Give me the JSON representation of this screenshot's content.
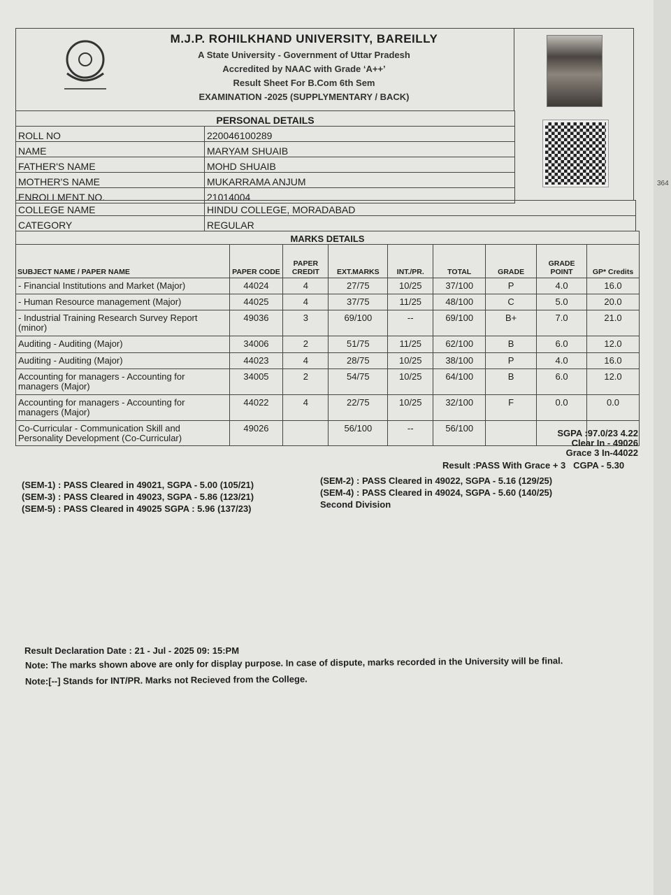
{
  "header": {
    "university": "M.J.P. ROHILKHAND UNIVERSITY, BAREILLY",
    "line1": "A State University - Government of Uttar Pradesh",
    "line2": "Accredited by NAAC with Grade ‘A++’",
    "line3": "Result Sheet For B.Com 6th Sem",
    "line4": "EXAMINATION -2025 (SUPPLYMENTARY / BACK)"
  },
  "personal": {
    "title": "PERSONAL DETAILS",
    "rows": [
      {
        "label": "ROLL NO",
        "value": "220046100289"
      },
      {
        "label": "NAME",
        "value": "MARYAM SHUAIB"
      },
      {
        "label": "FATHER'S NAME",
        "value": "MOHD SHUAIB"
      },
      {
        "label": "MOTHER'S NAME",
        "value": "MUKARRAMA ANJUM"
      },
      {
        "label": "ENROLLMENT NO.",
        "value": "21014004"
      },
      {
        "label": "COLLEGE NAME",
        "value": "HINDU COLLEGE, MORADABAD"
      },
      {
        "label": "CATEGORY",
        "value": "REGULAR"
      }
    ]
  },
  "marks": {
    "title": "MARKS DETAILS",
    "headers": [
      "SUBJECT NAME / PAPER NAME",
      "PAPER CODE",
      "PAPER CREDIT",
      "EXT.MARKS",
      "INT./PR.",
      "TOTAL",
      "GRADE",
      "GRADE POINT",
      "GP* Credits"
    ],
    "rows": [
      [
        "- Financial Institutions and Market (Major)",
        "44024",
        "4",
        "27/75",
        "10/25",
        "37/100",
        "P",
        "4.0",
        "16.0"
      ],
      [
        "- Human Resource management (Major)",
        "44025",
        "4",
        "37/75",
        "11/25",
        "48/100",
        "C",
        "5.0",
        "20.0"
      ],
      [
        "- Industrial Training Research Survey Report (minor)",
        "49036",
        "3",
        "69/100",
        "--",
        "69/100",
        "B+",
        "7.0",
        "21.0"
      ],
      [
        "Auditing - Auditing (Major)",
        "34006",
        "2",
        "51/75",
        "11/25",
        "62/100",
        "B",
        "6.0",
        "12.0"
      ],
      [
        "Auditing - Auditing (Major)",
        "44023",
        "4",
        "28/75",
        "10/25",
        "38/100",
        "P",
        "4.0",
        "16.0"
      ],
      [
        "Accounting for managers - Accounting for managers (Major)",
        "34005",
        "2",
        "54/75",
        "10/25",
        "64/100",
        "B",
        "6.0",
        "12.0"
      ],
      [
        "Accounting for managers - Accounting for managers (Major)",
        "44022",
        "4",
        "22/75",
        "10/25",
        "32/100",
        "F",
        "0.0",
        "0.0"
      ],
      [
        "Co-Curricular - Communication Skill and Personality Development (Co-Curricular)",
        "49026",
        "",
        "56/100",
        "--",
        "56/100",
        "",
        "",
        ""
      ]
    ]
  },
  "summary": {
    "sgpa": "SGPA :97.0/23   4.22",
    "clear": "Clear In  - 49026",
    "grace": "Grace  3 In-44022",
    "result": "Result :PASS With Grace + 3",
    "cgpa": "CGPA - 5.30"
  },
  "semesters": {
    "left": [
      "(SEM-1) : PASS Cleared in 49021, SGPA - 5.00 (105/21)",
      "(SEM-3) : PASS Cleared in 49023, SGPA - 5.86 (123/21)",
      "(SEM-5)  : PASS Cleared in 49025  SGPA : 5.96 (137/23)"
    ],
    "right": [
      "(SEM-2) : PASS Cleared in 49022, SGPA - 5.16 (129/25)",
      "(SEM-4) : PASS Cleared in 49024, SGPA - 5.60 (140/25)",
      "Second Division"
    ]
  },
  "footer": {
    "declaration": "Result Declaration Date  : 21 - Jul - 2025 09: 15:PM",
    "note1": "Note: The marks shown above are only for display purpose. In case of dispute, marks recorded in the University will be final.",
    "note2": "Note:[--] Stands for INT/PR. Marks not Recieved from the College."
  },
  "side": {
    "text": "364"
  }
}
